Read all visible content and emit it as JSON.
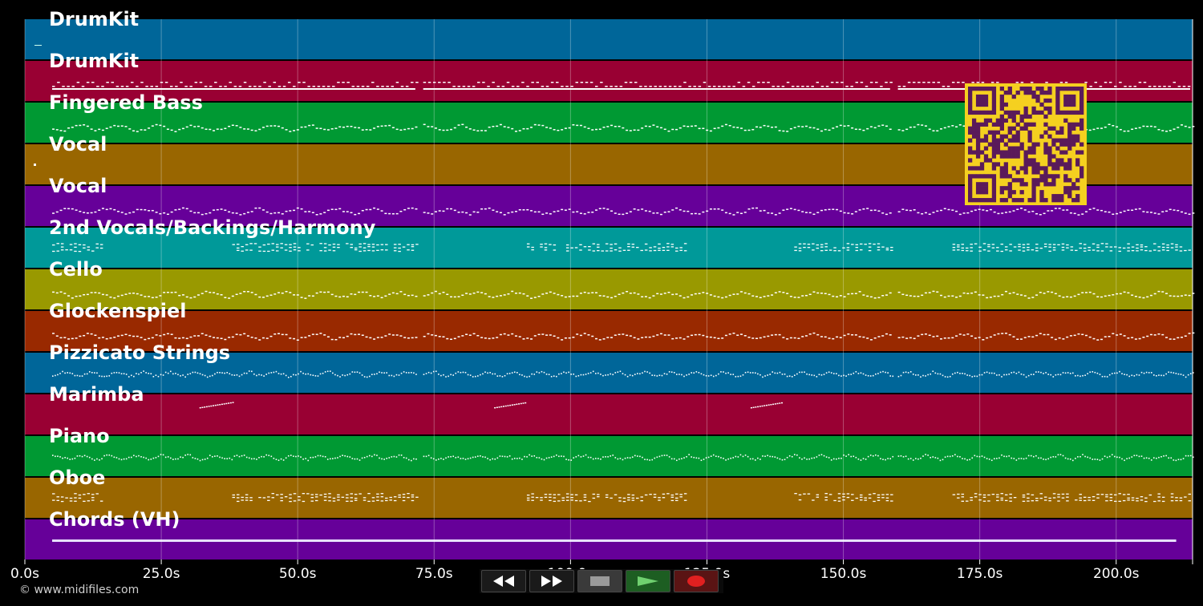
{
  "tracks": [
    {
      "name": "DrumKit",
      "color": "#006699",
      "pattern": "none"
    },
    {
      "name": "DrumKit",
      "color": "#990033",
      "pattern": "dashes"
    },
    {
      "name": "Fingered Bass",
      "color": "#009933",
      "pattern": "wave"
    },
    {
      "name": "Vocal",
      "color": "#996600",
      "pattern": "none"
    },
    {
      "name": "Vocal",
      "color": "#660099",
      "pattern": "wave"
    },
    {
      "name": "2nd Vocals/Backings/Harmony",
      "color": "#009999",
      "pattern": "stacked"
    },
    {
      "name": "Cello",
      "color": "#999900",
      "pattern": "wave"
    },
    {
      "name": "Glockenspiel",
      "color": "#992900",
      "pattern": "wave"
    },
    {
      "name": "Pizzicato Strings",
      "color": "#006699",
      "pattern": "dots"
    },
    {
      "name": "Marimba",
      "color": "#990033",
      "pattern": "sparse"
    },
    {
      "name": "Piano",
      "color": "#009933",
      "pattern": "dots"
    },
    {
      "name": "Oboe",
      "color": "#996600",
      "pattern": "stacked"
    },
    {
      "name": "Chords (VH)",
      "color": "#660099",
      "pattern": "solid"
    }
  ],
  "timeline": {
    "max_seconds": 214,
    "ticks": [
      "0.0s",
      "25.0s",
      "50.0s",
      "75.0s",
      "100.0s",
      "125.0s",
      "150.0s",
      "175.0s",
      "200.0s"
    ],
    "tick_values": [
      0,
      25,
      50,
      75,
      100,
      125,
      150,
      175,
      200
    ]
  },
  "controls": {
    "rewind": "rewind-icon",
    "fast_forward": "fast-forward-icon",
    "stop": "stop-icon",
    "play": "play-icon",
    "record": "record-icon"
  },
  "footer": {
    "copyright": "© www.midifiles.com"
  },
  "colors": {
    "qr_fg": "#5a1a5a",
    "qr_bg": "#f5d020",
    "grid": "#ffffff"
  }
}
